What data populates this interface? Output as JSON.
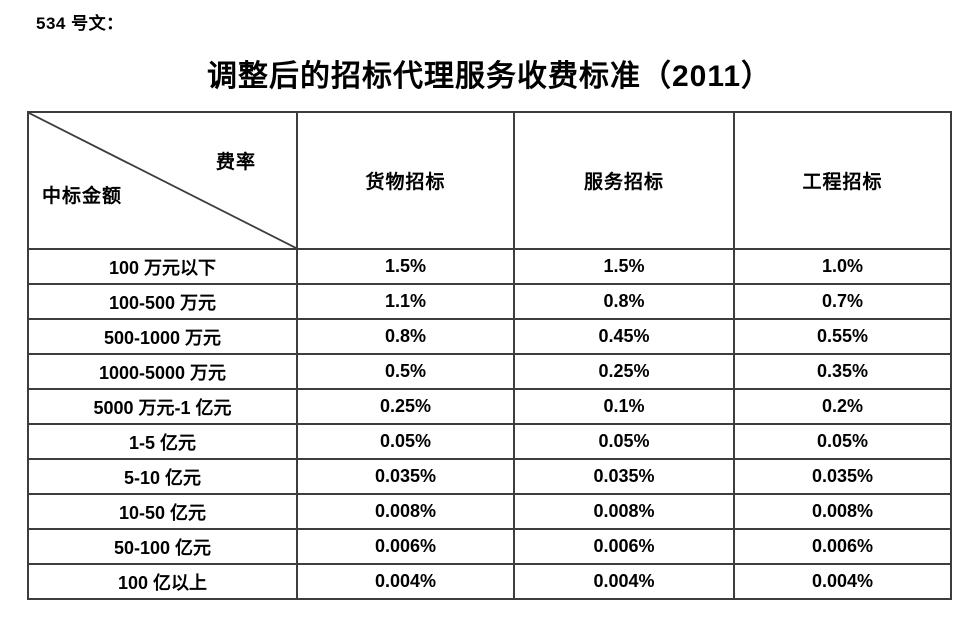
{
  "doc": {
    "ref_label": "534 号文：",
    "title": "调整后的招标代理服务收费标准（2011）"
  },
  "table": {
    "corner": {
      "top_right": "费率",
      "bottom_left": "中标金额"
    },
    "columns": [
      "货物招标",
      "服务招标",
      "工程招标"
    ],
    "rows": [
      {
        "label": "100 万元以下",
        "values": [
          "1.5%",
          "1.5%",
          "1.0%"
        ]
      },
      {
        "label": "100-500 万元",
        "values": [
          "1.1%",
          "0.8%",
          "0.7%"
        ]
      },
      {
        "label": "500-1000 万元",
        "values": [
          "0.8%",
          "0.45%",
          "0.55%"
        ]
      },
      {
        "label": "1000-5000 万元",
        "values": [
          "0.5%",
          "0.25%",
          "0.35%"
        ]
      },
      {
        "label": "5000 万元-1 亿元",
        "values": [
          "0.25%",
          "0.1%",
          "0.2%"
        ]
      },
      {
        "label": "1-5 亿元",
        "values": [
          "0.05%",
          "0.05%",
          "0.05%"
        ]
      },
      {
        "label": "5-10 亿元",
        "values": [
          "0.035%",
          "0.035%",
          "0.035%"
        ]
      },
      {
        "label": "10-50 亿元",
        "values": [
          "0.008%",
          "0.008%",
          "0.008%"
        ]
      },
      {
        "label": "50-100 亿元",
        "values": [
          "0.006%",
          "0.006%",
          "0.006%"
        ]
      },
      {
        "label": "100 亿以上",
        "values": [
          "0.004%",
          "0.004%",
          "0.004%"
        ]
      }
    ]
  },
  "colors": {
    "text": "#000000",
    "border": "#3d3d3d",
    "background": "#ffffff"
  }
}
